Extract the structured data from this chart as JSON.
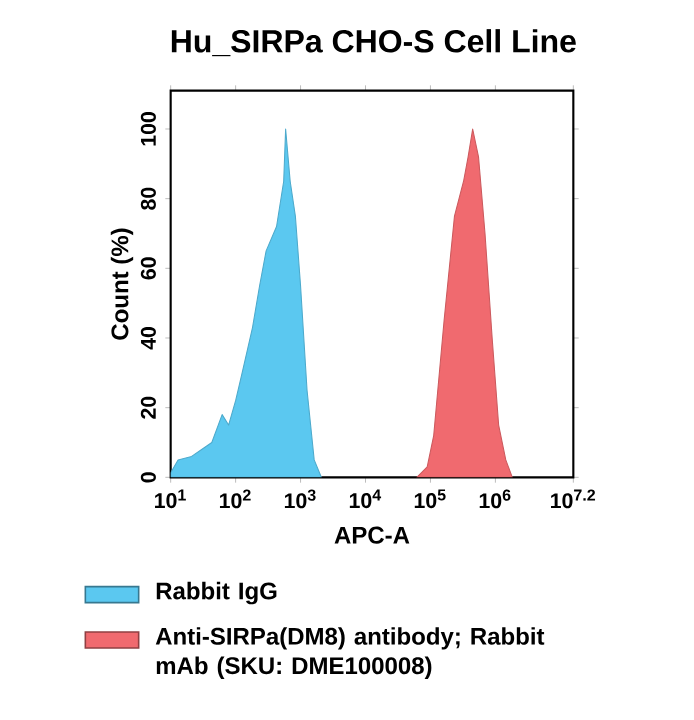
{
  "chart_data": {
    "type": "area",
    "title": "Hu_SIRPa CHO-S Cell Line",
    "xlabel": "APC-A",
    "ylabel": "Count  (%)",
    "log": "x",
    "xlim": [
      10,
      15848932
    ],
    "ylim": [
      0,
      111
    ],
    "xticks": [
      {
        "value": 10,
        "label": "10$^{1}$"
      },
      {
        "value": 100,
        "label": "10$^{2}$"
      },
      {
        "value": 1000,
        "label": "10$^{3}$"
      },
      {
        "value": 10000,
        "label": "10$^{4}$"
      },
      {
        "value": 100000,
        "label": "10$^{5}$"
      },
      {
        "value": 1000000,
        "label": "10$^{6}$"
      },
      {
        "value": 15848932,
        "label": "10$^{7.2}$"
      }
    ],
    "yticks": [
      0,
      20,
      40,
      60,
      80,
      100
    ],
    "legend": "bottom",
    "grid": false,
    "series": [
      {
        "name": "Rabbit IgG",
        "color": "#5bc8f0",
        "x": [
          10,
          13,
          21,
          30,
          43,
          62,
          78,
          100,
          126,
          182,
          234,
          295,
          427,
          550,
          589,
          692,
          832,
          1000,
          1259,
          1622,
          2089
        ],
        "values": [
          1.3,
          5,
          6,
          8,
          10,
          18,
          15,
          22,
          30,
          43,
          55,
          65,
          72,
          85,
          100,
          85,
          75,
          55,
          25,
          5,
          0
        ]
      },
      {
        "name": "Anti-SIRPa(DM8) antibody; Rabbit mAb (SKU: DME100008)",
        "color": "#f06a6f",
        "x": [
          61660,
          89125,
          112202,
          162181,
          234423,
          323594,
          380189,
          446684,
          549541,
          691831,
          891251,
          1122018,
          1445440,
          1819701
        ],
        "values": [
          0,
          3,
          12,
          45,
          75,
          85,
          92,
          100,
          92,
          70,
          40,
          15,
          5,
          0
        ]
      }
    ]
  }
}
